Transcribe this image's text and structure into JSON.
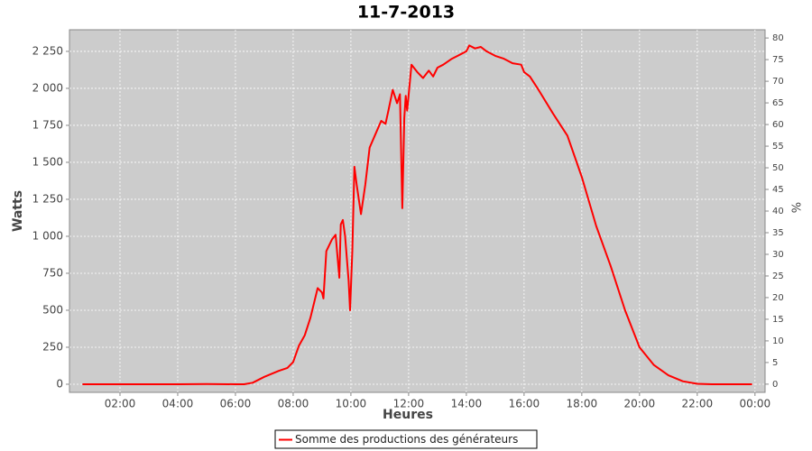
{
  "chart_data": {
    "type": "line",
    "title": "11-7-2013",
    "x_label": "Heures",
    "y_label": "Watts",
    "y2_label": "%",
    "x": [
      0.7,
      2,
      4,
      5,
      6,
      6.3,
      6.6,
      7,
      7.5,
      7.8,
      8,
      8.2,
      8.4,
      8.6,
      8.85,
      9.0,
      9.05,
      9.15,
      9.35,
      9.47,
      9.6,
      9.65,
      9.72,
      9.8,
      9.92,
      9.97,
      10.05,
      10.12,
      10.2,
      10.35,
      10.5,
      10.65,
      10.85,
      11.05,
      11.2,
      11.3,
      11.45,
      11.6,
      11.7,
      11.78,
      11.85,
      11.9,
      11.95,
      12.1,
      12.3,
      12.5,
      12.7,
      12.85,
      13,
      13.2,
      13.5,
      13.8,
      14,
      14.1,
      14.3,
      14.5,
      14.7,
      15,
      15.3,
      15.6,
      15.9,
      16,
      16.2,
      16.5,
      17,
      17.5,
      18,
      18.5,
      19,
      19.5,
      20,
      20.5,
      21,
      21.5,
      22,
      22.5,
      23.9
    ],
    "series": [
      {
        "name": "Somme des productions des  générateurs",
        "color": "#ff0000",
        "values": [
          0,
          0,
          0,
          2,
          0,
          0,
          10,
          50,
          90,
          110,
          150,
          260,
          330,
          450,
          650,
          620,
          580,
          900,
          980,
          1010,
          720,
          1080,
          1110,
          1000,
          700,
          500,
          900,
          1470,
          1350,
          1150,
          1350,
          1600,
          1690,
          1780,
          1760,
          1850,
          1990,
          1900,
          1960,
          1190,
          1800,
          1950,
          1850,
          2160,
          2110,
          2070,
          2120,
          2080,
          2140,
          2160,
          2200,
          2230,
          2250,
          2290,
          2270,
          2280,
          2250,
          2220,
          2200,
          2170,
          2160,
          2110,
          2080,
          1990,
          1830,
          1680,
          1400,
          1070,
          800,
          500,
          250,
          130,
          60,
          20,
          3,
          0,
          0
        ]
      }
    ],
    "xlim": [
      0.25,
      24.35
    ],
    "xticks": [
      {
        "value": 2,
        "label": "02:00"
      },
      {
        "value": 4,
        "label": "04:00"
      },
      {
        "value": 6,
        "label": "06:00"
      },
      {
        "value": 8,
        "label": "08:00"
      },
      {
        "value": 10,
        "label": "10:00"
      },
      {
        "value": 12,
        "label": "12:00"
      },
      {
        "value": 14,
        "label": "14:00"
      },
      {
        "value": 16,
        "label": "16:00"
      },
      {
        "value": 18,
        "label": "18:00"
      },
      {
        "value": 20,
        "label": "20:00"
      },
      {
        "value": 22,
        "label": "22:00"
      },
      {
        "value": 24,
        "label": "00:00"
      }
    ],
    "ylim": [
      -55,
      2396
    ],
    "yticks": [
      0,
      250,
      500,
      750,
      {
        "value": 1000,
        "label": "1 000"
      },
      {
        "value": 1250,
        "label": "1 250"
      },
      {
        "value": 1500,
        "label": "1 500"
      },
      {
        "value": 1750,
        "label": "1 750"
      },
      {
        "value": 2000,
        "label": "2 000"
      },
      {
        "value": 2250,
        "label": "2 250"
      }
    ],
    "y2lim": [
      -1.9,
      81.9
    ],
    "y2ticks": [
      0,
      5,
      10,
      15,
      20,
      25,
      30,
      35,
      40,
      45,
      50,
      55,
      60,
      65,
      70,
      75,
      80
    ],
    "grid": true,
    "legend": "bottom"
  }
}
